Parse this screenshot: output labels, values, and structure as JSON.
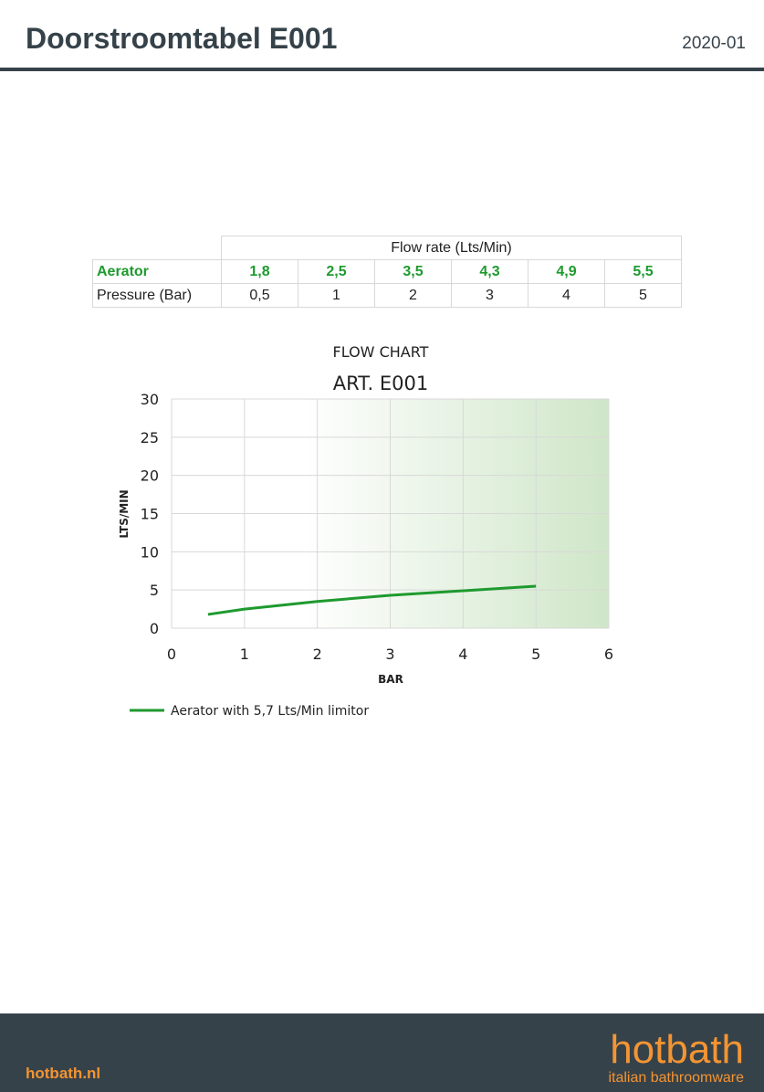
{
  "header": {
    "title": "Doorstroomtabel E001",
    "date": "2020-01"
  },
  "table": {
    "header": "Flow rate (Lts/Min)",
    "rows": [
      {
        "label": "Aerator",
        "values": [
          "1,8",
          "2,5",
          "3,5",
          "4,3",
          "4,9",
          "5,5"
        ]
      },
      {
        "label": "Pressure (Bar)",
        "values": [
          "0,5",
          "1",
          "2",
          "3",
          "4",
          "5"
        ]
      }
    ]
  },
  "chart_data": {
    "type": "line",
    "title": "FLOW CHART",
    "subtitle": "ART. E001",
    "xlabel": "BAR",
    "ylabel": "LTS/MIN",
    "xlim": [
      0,
      6
    ],
    "ylim": [
      0,
      30
    ],
    "xticks": [
      0,
      1,
      2,
      3,
      4,
      5,
      6
    ],
    "yticks": [
      0,
      5,
      10,
      15,
      20,
      25,
      30
    ],
    "grid": true,
    "legend": "bottom-left",
    "series": [
      {
        "name": "Aerator with 5,7 Lts/Min limitor",
        "color": "#1e9a2e",
        "x": [
          0.5,
          1,
          2,
          3,
          4,
          5
        ],
        "y": [
          1.8,
          2.5,
          3.5,
          4.3,
          4.9,
          5.5
        ]
      }
    ]
  },
  "footer": {
    "url": "hotbath.nl",
    "logo": "hotbath",
    "tagline": "italian bathroomware"
  },
  "colors": {
    "accent": "#f39433",
    "dark": "#36424a",
    "green": "#1e9a2e"
  }
}
